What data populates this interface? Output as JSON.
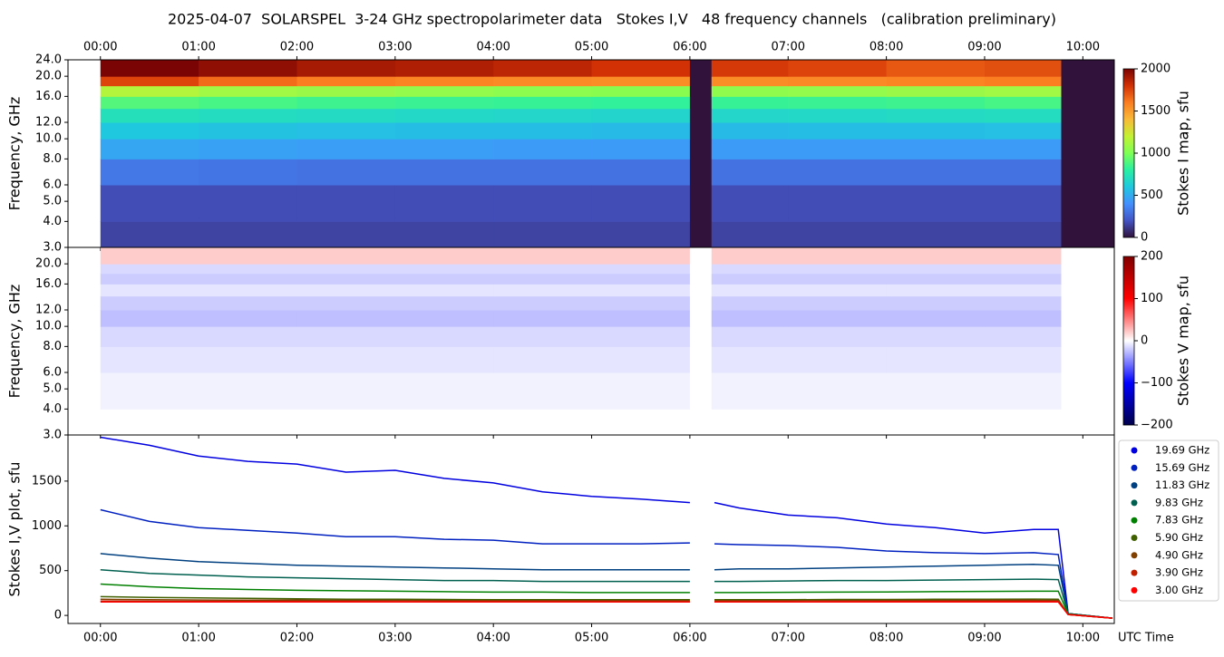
{
  "chart_data": [
    {
      "type": "heatmap",
      "title": "2025-04-07  SOLARSPEL  3-24 GHz spectropolarimeter data   Stokes I,V   48 frequency channels   (calibration preliminary)",
      "ylabel": "Frequency, GHz",
      "x_edges": [
        0,
        1,
        2,
        3,
        4,
        5,
        6,
        6.22,
        7,
        8,
        9,
        9.78,
        10.32
      ],
      "y_edges": [
        3,
        4,
        6,
        8,
        10,
        12,
        14,
        16,
        18,
        20,
        24
      ],
      "values": [
        [
          150,
          150,
          150,
          150,
          150,
          150,
          0,
          150,
          150,
          150,
          150,
          0
        ],
        [
          180,
          180,
          180,
          180,
          180,
          180,
          0,
          180,
          180,
          180,
          180,
          0
        ],
        [
          320,
          310,
          300,
          300,
          300,
          300,
          0,
          300,
          300,
          300,
          300,
          0
        ],
        [
          480,
          460,
          450,
          450,
          440,
          440,
          0,
          440,
          440,
          440,
          440,
          0
        ],
        [
          600,
          580,
          570,
          560,
          560,
          550,
          0,
          550,
          560,
          560,
          570,
          0
        ],
        [
          720,
          700,
          690,
          680,
          670,
          660,
          0,
          670,
          680,
          690,
          700,
          0
        ],
        [
          900,
          870,
          850,
          840,
          830,
          820,
          0,
          830,
          840,
          850,
          870,
          0
        ],
        [
          1150,
          1100,
          1080,
          1060,
          1040,
          1030,
          0,
          1050,
          1060,
          1080,
          1100,
          0
        ],
        [
          1750,
          1650,
          1600,
          1580,
          1560,
          1550,
          0,
          1550,
          1560,
          1580,
          1600,
          0
        ],
        [
          2000,
          1950,
          1900,
          1880,
          1850,
          1800,
          0,
          1780,
          1750,
          1700,
          1720,
          0
        ]
      ],
      "colormap": "turbo",
      "log_y": true,
      "xaxis_position": "top",
      "xlim": [
        -0.33,
        10.32
      ],
      "ylim": [
        3,
        24
      ],
      "xticks": [
        {
          "value": 0,
          "label": "00:00"
        },
        {
          "value": 1,
          "label": "01:00"
        },
        {
          "value": 2,
          "label": "02:00"
        },
        {
          "value": 3,
          "label": "03:00"
        },
        {
          "value": 4,
          "label": "04:00"
        },
        {
          "value": 5,
          "label": "05:00"
        },
        {
          "value": 6,
          "label": "06:00"
        },
        {
          "value": 7,
          "label": "07:00"
        },
        {
          "value": 8,
          "label": "08:00"
        },
        {
          "value": 9,
          "label": "09:00"
        },
        {
          "value": 10,
          "label": "10:00"
        }
      ],
      "yticks": [
        {
          "value": 3,
          "label": "3.0"
        },
        {
          "value": 4,
          "label": "4.0"
        },
        {
          "value": 5,
          "label": "5.0"
        },
        {
          "value": 6,
          "label": "6.0"
        },
        {
          "value": 8,
          "label": "8.0"
        },
        {
          "value": 10,
          "label": "10.0"
        },
        {
          "value": 12,
          "label": "12.0"
        },
        {
          "value": 16,
          "label": "16.0"
        },
        {
          "value": 20,
          "label": "20.0"
        },
        {
          "value": 24,
          "label": "24.0"
        }
      ],
      "colorbar": {
        "label": "Stokes I map, sfu",
        "lim": [
          0,
          2000
        ],
        "ticks": [
          0,
          500,
          1000,
          1500,
          2000
        ]
      }
    },
    {
      "type": "heatmap",
      "ylabel": "Frequency, GHz",
      "x_edges": [
        0,
        1,
        2,
        3,
        4,
        5,
        6,
        6.22,
        7,
        8,
        9,
        9.78,
        10.32
      ],
      "y_edges": [
        3,
        4,
        6,
        8,
        10,
        12,
        14,
        16,
        18,
        20,
        24
      ],
      "values": [
        [
          0,
          0,
          0,
          0,
          0,
          0,
          0,
          0,
          0,
          0,
          0,
          0
        ],
        [
          -5,
          -5,
          -5,
          -5,
          -5,
          -5,
          0,
          -5,
          -5,
          -5,
          -5,
          0
        ],
        [
          -10,
          -10,
          -10,
          -10,
          -10,
          -10,
          0,
          -10,
          -10,
          -10,
          -10,
          0
        ],
        [
          -15,
          -15,
          -15,
          -15,
          -15,
          -15,
          0,
          -15,
          -15,
          -15,
          -15,
          0
        ],
        [
          -25,
          -25,
          -25,
          -25,
          -25,
          -25,
          0,
          -25,
          -25,
          -25,
          -25,
          0
        ],
        [
          -20,
          -20,
          -20,
          -20,
          -20,
          -20,
          0,
          -20,
          -20,
          -20,
          -20,
          0
        ],
        [
          -10,
          -10,
          -10,
          -10,
          -10,
          -10,
          0,
          -10,
          -10,
          -10,
          -10,
          0
        ],
        [
          -20,
          -20,
          -20,
          -20,
          -20,
          -20,
          0,
          -20,
          -20,
          -20,
          -20,
          0
        ],
        [
          -15,
          -15,
          -15,
          -15,
          -15,
          -15,
          0,
          -15,
          -15,
          -15,
          -15,
          0
        ],
        [
          20,
          20,
          20,
          20,
          20,
          20,
          0,
          20,
          20,
          20,
          20,
          0
        ]
      ],
      "colormap": "seismic",
      "log_y": true,
      "xaxis_position": "none",
      "xlim": [
        -0.33,
        10.32
      ],
      "ylim": [
        3,
        24
      ],
      "xticks": [
        0,
        1,
        2,
        3,
        4,
        5,
        6,
        7,
        8,
        9,
        10
      ],
      "yticks": [
        {
          "value": 3,
          "label": "3.0"
        },
        {
          "value": 4,
          "label": "4.0"
        },
        {
          "value": 5,
          "label": "5.0"
        },
        {
          "value": 6,
          "label": "6.0"
        },
        {
          "value": 8,
          "label": "8.0"
        },
        {
          "value": 10,
          "label": "10.0"
        },
        {
          "value": 12,
          "label": "12.0"
        },
        {
          "value": 16,
          "label": "16.0"
        },
        {
          "value": 20,
          "label": "20.0"
        }
      ],
      "colorbar": {
        "label": "Stokes V map, sfu",
        "lim": [
          -200,
          200
        ],
        "ticks": [
          {
            "value": -200,
            "label": "−200"
          },
          {
            "value": -100,
            "label": "−100"
          },
          0,
          100,
          200
        ]
      }
    },
    {
      "type": "line",
      "ylabel": "Stokes I,V plot, sfu",
      "xlabel": "UTC Time",
      "xaxis_position": "bottom",
      "x": [
        0,
        0.5,
        1,
        1.5,
        2,
        2.5,
        3,
        3.5,
        4,
        4.5,
        5,
        5.5,
        6,
        6.1,
        6.25,
        6.5,
        7,
        7.5,
        8,
        8.5,
        9,
        9.5,
        9.75,
        9.85,
        10.3
      ],
      "series": [
        {
          "name": "19.69 GHz",
          "color": "#0000e0",
          "values": [
            1990,
            1900,
            1780,
            1720,
            1690,
            1600,
            1620,
            1530,
            1480,
            1380,
            1330,
            1300,
            1260,
            null,
            1260,
            1200,
            1120,
            1090,
            1020,
            980,
            920,
            960,
            960,
            20,
            -30
          ]
        },
        {
          "name": "15.69 GHz",
          "color": "#0020c0",
          "values": [
            1180,
            1050,
            980,
            950,
            920,
            880,
            880,
            850,
            840,
            800,
            800,
            800,
            810,
            null,
            800,
            790,
            780,
            760,
            720,
            700,
            690,
            700,
            680,
            20,
            -30
          ]
        },
        {
          "name": "11.83 GHz",
          "color": "#004080",
          "values": [
            690,
            640,
            600,
            580,
            560,
            550,
            540,
            530,
            520,
            510,
            510,
            510,
            510,
            null,
            510,
            520,
            520,
            530,
            540,
            550,
            560,
            570,
            560,
            20,
            -30
          ]
        },
        {
          "name": "9.83 GHz",
          "color": "#006050",
          "values": [
            510,
            470,
            450,
            430,
            420,
            410,
            400,
            390,
            390,
            380,
            380,
            380,
            380,
            null,
            380,
            380,
            385,
            390,
            390,
            395,
            400,
            405,
            400,
            20,
            -30
          ]
        },
        {
          "name": "7.83 GHz",
          "color": "#008000",
          "values": [
            350,
            320,
            300,
            290,
            280,
            275,
            270,
            265,
            260,
            260,
            255,
            255,
            255,
            null,
            255,
            255,
            258,
            260,
            262,
            265,
            268,
            270,
            270,
            15,
            -30
          ]
        },
        {
          "name": "5.90 GHz",
          "color": "#406000",
          "values": [
            210,
            200,
            195,
            190,
            185,
            180,
            180,
            178,
            175,
            175,
            175,
            175,
            175,
            null,
            175,
            175,
            175,
            178,
            178,
            180,
            180,
            182,
            180,
            10,
            -30
          ]
        },
        {
          "name": "4.90 GHz",
          "color": "#804000",
          "values": [
            180,
            175,
            172,
            170,
            170,
            168,
            168,
            166,
            165,
            165,
            165,
            165,
            165,
            null,
            165,
            165,
            166,
            167,
            168,
            168,
            170,
            170,
            168,
            10,
            -30
          ]
        },
        {
          "name": "3.90 GHz",
          "color": "#c02000",
          "values": [
            160,
            158,
            157,
            156,
            155,
            155,
            154,
            153,
            152,
            152,
            152,
            152,
            152,
            null,
            152,
            152,
            153,
            154,
            155,
            156,
            157,
            158,
            155,
            10,
            -30
          ]
        },
        {
          "name": "3.00 GHz",
          "color": "#ff0000",
          "values": [
            150,
            150,
            150,
            150,
            150,
            150,
            150,
            150,
            150,
            150,
            150,
            150,
            150,
            null,
            150,
            150,
            150,
            150,
            150,
            150,
            150,
            150,
            150,
            10,
            -30
          ]
        }
      ],
      "xlim": [
        -0.33,
        10.32
      ],
      "ylim": [
        -90,
        2015
      ],
      "xticks": [
        {
          "value": 0,
          "label": "00:00"
        },
        {
          "value": 1,
          "label": "01:00"
        },
        {
          "value": 2,
          "label": "02:00"
        },
        {
          "value": 3,
          "label": "03:00"
        },
        {
          "value": 4,
          "label": "04:00"
        },
        {
          "value": 5,
          "label": "05:00"
        },
        {
          "value": 6,
          "label": "06:00"
        },
        {
          "value": 7,
          "label": "07:00"
        },
        {
          "value": 8,
          "label": "08:00"
        },
        {
          "value": 9,
          "label": "09:00"
        },
        {
          "value": 10,
          "label": "10:00"
        }
      ],
      "yticks": [
        0,
        500,
        1000,
        1500
      ],
      "legend": "outside-right"
    }
  ]
}
